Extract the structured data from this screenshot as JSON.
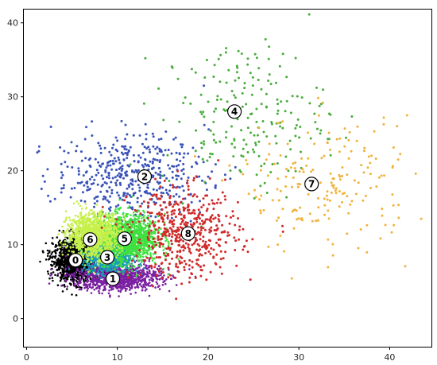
{
  "chart_data": {
    "type": "scatter",
    "title": "",
    "xlabel": "",
    "ylabel": "",
    "xlim": [
      -0.3,
      44.6
    ],
    "ylim": [
      -3.8,
      41.8
    ],
    "x_ticks": [
      0,
      10,
      20,
      30,
      40
    ],
    "y_ticks": [
      0,
      10,
      20,
      30,
      40
    ],
    "grid": false,
    "legend": "none",
    "clusters": [
      {
        "label": "0",
        "color": "#000000",
        "center": [
          5.4,
          7.9
        ],
        "spread": [
          1.2,
          1.4
        ],
        "count": 1400,
        "label_pos": [
          5.4,
          7.9
        ]
      },
      {
        "label": "1",
        "color": "#7a1fa2",
        "center": [
          10.0,
          5.6
        ],
        "spread": [
          2.4,
          0.9
        ],
        "count": 1000,
        "label_pos": [
          9.5,
          5.4
        ]
      },
      {
        "label": "2",
        "color": "#3953b8",
        "center": [
          11.5,
          19.5
        ],
        "spread": [
          4.2,
          2.8
        ],
        "count": 450,
        "label_pos": [
          13.0,
          19.2
        ]
      },
      {
        "label": "3",
        "color": "#1a9db8",
        "center": [
          9.0,
          8.2
        ],
        "spread": [
          1.3,
          1.0
        ],
        "count": 800,
        "label_pos": [
          8.9,
          8.3
        ]
      },
      {
        "label": "4",
        "color": "#4aac3d",
        "center": [
          24.0,
          27.5
        ],
        "spread": [
          4.5,
          5.0
        ],
        "count": 210,
        "label_pos": [
          22.9,
          28.0
        ]
      },
      {
        "label": "5",
        "color": "#3fe03f",
        "center": [
          11.0,
          10.8
        ],
        "spread": [
          1.8,
          1.6
        ],
        "count": 1300,
        "label_pos": [
          10.8,
          10.8
        ]
      },
      {
        "label": "6",
        "color": "#c6f04a",
        "center": [
          7.3,
          11.3
        ],
        "spread": [
          1.4,
          1.5
        ],
        "count": 1100,
        "label_pos": [
          7.0,
          10.7
        ]
      },
      {
        "label": "7",
        "color": "#f0b33c",
        "center": [
          33.0,
          18.0
        ],
        "spread": [
          4.8,
          4.5
        ],
        "count": 190,
        "label_pos": [
          31.4,
          18.2
        ]
      },
      {
        "label": "8",
        "color": "#d02a2a",
        "center": [
          17.5,
          11.5
        ],
        "spread": [
          3.0,
          3.0
        ],
        "count": 500,
        "label_pos": [
          17.8,
          11.5
        ]
      }
    ]
  }
}
